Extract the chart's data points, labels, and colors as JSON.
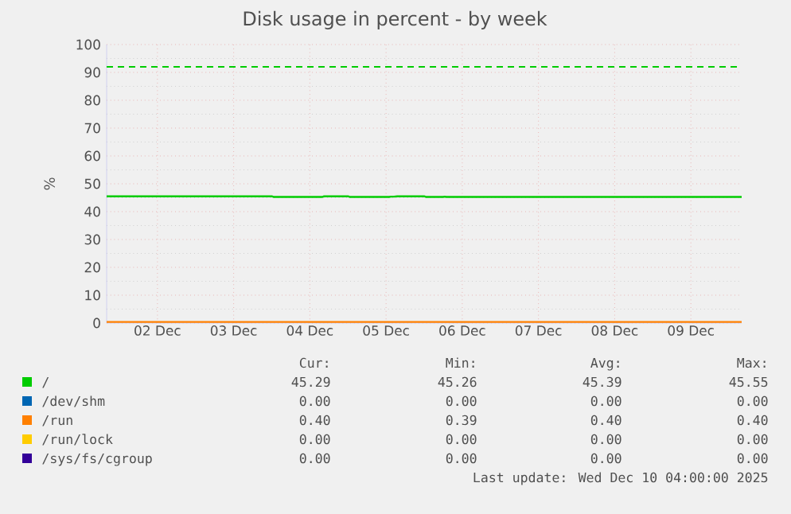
{
  "chart_data": {
    "type": "line",
    "title": "Disk usage in percent - by week",
    "ylabel": "%",
    "xlim": [
      "2025-12-01T20:00",
      "2025-12-10T04:00"
    ],
    "xticks": [
      {
        "value": "2025-12-02T12:00",
        "label": "02 Dec"
      },
      {
        "value": "2025-12-03T12:00",
        "label": "03 Dec"
      },
      {
        "value": "2025-12-04T12:00",
        "label": "04 Dec"
      },
      {
        "value": "2025-12-05T12:00",
        "label": "05 Dec"
      },
      {
        "value": "2025-12-06T12:00",
        "label": "06 Dec"
      },
      {
        "value": "2025-12-07T12:00",
        "label": "07 Dec"
      },
      {
        "value": "2025-12-08T12:00",
        "label": "08 Dec"
      },
      {
        "value": "2025-12-09T12:00",
        "label": "09 Dec"
      }
    ],
    "ylim": [
      0,
      100
    ],
    "yticks": [
      0,
      10,
      20,
      30,
      40,
      50,
      60,
      70,
      80,
      90,
      100
    ],
    "grid": true,
    "legend": "bottom",
    "series": [
      {
        "name": "/",
        "color": "#00cc00",
        "x": [
          "2025-12-01T20:00",
          "2025-12-04T00:00",
          "2025-12-04T00:30",
          "2025-12-04T16:00",
          "2025-12-04T16:30",
          "2025-12-05T00:00",
          "2025-12-05T00:30",
          "2025-12-05T13:00",
          "2025-12-05T13:30",
          "2025-12-05T14:30",
          "2025-12-05T15:30",
          "2025-12-06T00:00",
          "2025-12-06T00:30",
          "2025-12-06T06:00",
          "2025-12-06T06:30",
          "2025-12-06T07:00",
          "2025-12-10T04:00"
        ],
        "values": [
          45.5,
          45.5,
          45.3,
          45.3,
          45.5,
          45.5,
          45.3,
          45.3,
          45.4,
          45.4,
          45.5,
          45.5,
          45.3,
          45.3,
          45.4,
          45.3,
          45.3
        ]
      },
      {
        "name": "/dev/shm",
        "color": "#0066b3",
        "values": [
          null,
          null
        ]
      },
      {
        "name": "/run",
        "color": "#ff8000",
        "x": [
          "2025-12-01T20:00",
          "2025-12-10T04:00"
        ],
        "values": [
          0.4,
          0.4
        ]
      },
      {
        "name": "/run/lock",
        "color": "#ffcc00",
        "values": [
          null,
          null
        ]
      },
      {
        "name": "/sys/fs/cgroup",
        "color": "#330099",
        "values": [
          null,
          null
        ]
      }
    ],
    "ref_lines": [
      {
        "axis": "y",
        "value": 92,
        "color": "#00cc00",
        "line_style": "dashed"
      }
    ],
    "annotations": [
      "Cur:",
      "Min:",
      "Avg:",
      "Max:",
      "45.29",
      "45.26",
      "45.39",
      "45.55",
      "0.00",
      "0.00",
      "0.00",
      "0.00",
      "0.40",
      "0.39",
      "0.40",
      "0.40",
      "0.00",
      "0.00",
      "0.00",
      "0.00",
      "0.00",
      "0.00",
      "0.00",
      "0.00",
      "Last update: Wed Dec 10 04:00:00 2025"
    ]
  }
}
